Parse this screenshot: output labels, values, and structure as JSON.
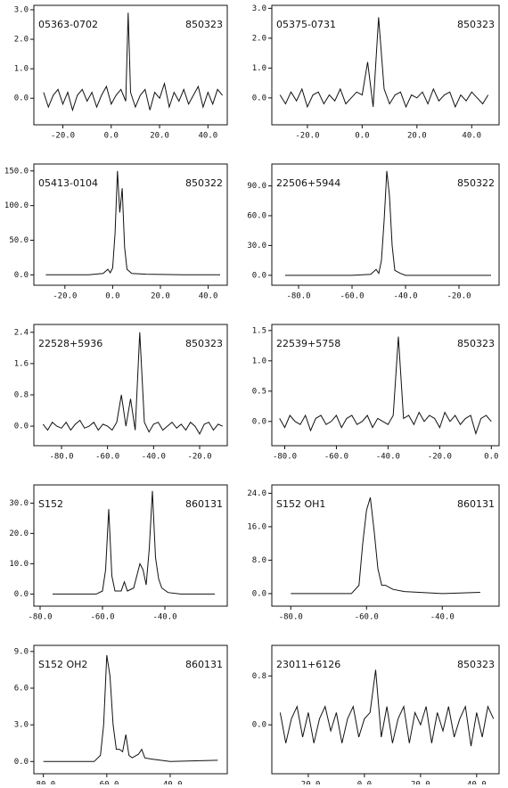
{
  "chart_data": [
    {
      "type": "line",
      "title": "05363-0702",
      "subtitle": "850323",
      "color": "#111111",
      "xlim": [
        -32,
        48
      ],
      "ylim": [
        -0.9,
        3.15
      ],
      "xticks": [
        {
          "value": -20,
          "label": "-20.0"
        },
        {
          "value": 0,
          "label": "0.0"
        },
        {
          "value": 20,
          "label": "20.0"
        },
        {
          "value": 40,
          "label": "40.0"
        }
      ],
      "yticks": [
        {
          "value": 0,
          "label": "0.0"
        },
        {
          "value": 1,
          "label": "1.0"
        },
        {
          "value": 2,
          "label": "2.0"
        },
        {
          "value": 3,
          "label": "3.0"
        }
      ],
      "x": [
        -28,
        -26,
        -24,
        -22,
        -20,
        -18,
        -16,
        -14,
        -12,
        -10,
        -8,
        -6,
        -4,
        -2,
        0,
        2,
        4,
        6,
        7,
        8,
        10,
        12,
        14,
        16,
        18,
        20,
        22,
        24,
        26,
        28,
        30,
        32,
        34,
        36,
        38,
        40,
        42,
        44,
        46
      ],
      "values": [
        0.2,
        -0.3,
        0.1,
        0.3,
        -0.2,
        0.2,
        -0.4,
        0.1,
        0.3,
        -0.1,
        0.2,
        -0.3,
        0.1,
        0.4,
        -0.2,
        0.1,
        0.3,
        -0.1,
        2.9,
        0.2,
        -0.3,
        0.1,
        0.3,
        -0.4,
        0.2,
        0.0,
        0.5,
        -0.3,
        0.2,
        -0.1,
        0.3,
        -0.2,
        0.1,
        0.4,
        -0.3,
        0.2,
        -0.2,
        0.3,
        0.1
      ]
    },
    {
      "type": "line",
      "title": "05375-0731",
      "subtitle": "850323",
      "color": "#111111",
      "xlim": [
        -33,
        50
      ],
      "ylim": [
        -0.9,
        3.1
      ],
      "xticks": [
        {
          "value": -20,
          "label": "-20.0"
        },
        {
          "value": 0,
          "label": "0.0"
        },
        {
          "value": 20,
          "label": "20.0"
        },
        {
          "value": 40,
          "label": "40.0"
        }
      ],
      "yticks": [
        {
          "value": 0,
          "label": "0.0"
        },
        {
          "value": 1,
          "label": "1.0"
        },
        {
          "value": 2,
          "label": "2.0"
        },
        {
          "value": 3,
          "label": "3.0"
        }
      ],
      "x": [
        -30,
        -28,
        -26,
        -24,
        -22,
        -20,
        -18,
        -16,
        -14,
        -12,
        -10,
        -8,
        -6,
        -4,
        -2,
        0,
        2,
        4,
        6,
        8,
        10,
        12,
        14,
        16,
        18,
        20,
        22,
        24,
        26,
        28,
        30,
        32,
        34,
        36,
        38,
        40,
        42,
        44,
        46
      ],
      "values": [
        0.1,
        -0.2,
        0.2,
        -0.1,
        0.3,
        -0.3,
        0.1,
        0.2,
        -0.2,
        0.1,
        -0.1,
        0.3,
        -0.2,
        0.0,
        0.2,
        0.1,
        1.2,
        -0.3,
        2.7,
        0.3,
        -0.2,
        0.1,
        0.2,
        -0.3,
        0.1,
        0.0,
        0.2,
        -0.2,
        0.3,
        -0.1,
        0.1,
        0.2,
        -0.3,
        0.1,
        -0.1,
        0.2,
        0.0,
        -0.2,
        0.1
      ]
    },
    {
      "type": "line",
      "title": "05413-0104",
      "subtitle": "850322",
      "color": "#111111",
      "xlim": [
        -33,
        48
      ],
      "ylim": [
        -15,
        160
      ],
      "xticks": [
        {
          "value": -20,
          "label": "-20.0"
        },
        {
          "value": 0,
          "label": "0.0"
        },
        {
          "value": 20,
          "label": "20.0"
        },
        {
          "value": 40,
          "label": "40.0"
        }
      ],
      "yticks": [
        {
          "value": 0,
          "label": "0.0"
        },
        {
          "value": 50,
          "label": "50.0"
        },
        {
          "value": 100,
          "label": "100.0"
        },
        {
          "value": 150,
          "label": "150.0"
        }
      ],
      "x": [
        -28,
        -10,
        -4,
        -2,
        -1,
        0,
        1,
        2,
        3,
        4,
        5,
        6,
        8,
        14,
        30,
        45
      ],
      "values": [
        0,
        0,
        2,
        8,
        3,
        10,
        60,
        150,
        90,
        125,
        40,
        8,
        2,
        1,
        0,
        0
      ]
    },
    {
      "type": "line",
      "title": "22506+5944",
      "subtitle": "850322",
      "color": "#111111",
      "xlim": [
        -90,
        -5
      ],
      "ylim": [
        -10,
        112
      ],
      "xticks": [
        {
          "value": -80,
          "label": "-80.0"
        },
        {
          "value": -60,
          "label": "-60.0"
        },
        {
          "value": -40,
          "label": "-40.0"
        },
        {
          "value": -20,
          "label": "-20.0"
        }
      ],
      "yticks": [
        {
          "value": 0,
          "label": "0.0"
        },
        {
          "value": 30,
          "label": "30.0"
        },
        {
          "value": 60,
          "label": "60.0"
        },
        {
          "value": 90,
          "label": "90.0"
        }
      ],
      "x": [
        -85,
        -60,
        -53,
        -51,
        -50,
        -49,
        -48,
        -47,
        -46,
        -45,
        -44,
        -42,
        -40,
        -30,
        -8
      ],
      "values": [
        0,
        0,
        1,
        6,
        2,
        15,
        55,
        105,
        80,
        30,
        5,
        2,
        0,
        0,
        0
      ]
    },
    {
      "type": "line",
      "title": "22528+5936",
      "subtitle": "850323",
      "color": "#111111",
      "xlim": [
        -92,
        -8
      ],
      "ylim": [
        -0.5,
        2.6
      ],
      "xticks": [
        {
          "value": -80,
          "label": "-80.0"
        },
        {
          "value": -60,
          "label": "-60.0"
        },
        {
          "value": -40,
          "label": "-40.0"
        },
        {
          "value": -20,
          "label": "-20.0"
        }
      ],
      "yticks": [
        {
          "value": 0,
          "label": "0.0"
        },
        {
          "value": 0.8,
          "label": "0.8"
        },
        {
          "value": 1.6,
          "label": "1.6"
        },
        {
          "value": 2.4,
          "label": "2.4"
        }
      ],
      "x": [
        -88,
        -86,
        -84,
        -82,
        -80,
        -78,
        -76,
        -74,
        -72,
        -70,
        -68,
        -66,
        -64,
        -62,
        -60,
        -58,
        -56,
        -54,
        -52,
        -50,
        -48,
        -46,
        -44,
        -42,
        -40,
        -38,
        -36,
        -34,
        -32,
        -30,
        -28,
        -26,
        -24,
        -22,
        -20,
        -18,
        -16,
        -14,
        -12,
        -10
      ],
      "values": [
        0.05,
        -0.1,
        0.1,
        0.0,
        -0.05,
        0.1,
        -0.1,
        0.05,
        0.15,
        -0.05,
        0.0,
        0.1,
        -0.1,
        0.05,
        0.0,
        -0.1,
        0.1,
        0.8,
        0.0,
        0.7,
        -0.1,
        2.4,
        0.1,
        -0.15,
        0.05,
        0.1,
        -0.1,
        0.0,
        0.1,
        -0.05,
        0.05,
        -0.1,
        0.1,
        0.0,
        -0.2,
        0.05,
        0.1,
        -0.1,
        0.05,
        0.0
      ]
    },
    {
      "type": "line",
      "title": "22539+5758",
      "subtitle": "850323",
      "color": "#111111",
      "xlim": [
        -85,
        3
      ],
      "ylim": [
        -0.4,
        1.6
      ],
      "xticks": [
        {
          "value": -80,
          "label": "-80.0"
        },
        {
          "value": -60,
          "label": "-60.0"
        },
        {
          "value": -40,
          "label": "-40.0"
        },
        {
          "value": -20,
          "label": "-20.0"
        },
        {
          "value": 0,
          "label": "0.0"
        }
      ],
      "yticks": [
        {
          "value": 0,
          "label": "0.0"
        },
        {
          "value": 0.5,
          "label": "0.5"
        },
        {
          "value": 1,
          "label": "1.0"
        },
        {
          "value": 1.5,
          "label": "1.5"
        }
      ],
      "x": [
        -82,
        -80,
        -78,
        -76,
        -74,
        -72,
        -70,
        -68,
        -66,
        -64,
        -62,
        -60,
        -58,
        -56,
        -54,
        -52,
        -50,
        -48,
        -46,
        -44,
        -42,
        -40,
        -38,
        -36,
        -34,
        -32,
        -30,
        -28,
        -26,
        -24,
        -22,
        -20,
        -18,
        -16,
        -14,
        -12,
        -10,
        -8,
        -6,
        -4,
        -2,
        0
      ],
      "values": [
        0.05,
        -0.1,
        0.1,
        0.0,
        -0.05,
        0.1,
        -0.15,
        0.05,
        0.1,
        -0.05,
        0.0,
        0.1,
        -0.1,
        0.05,
        0.1,
        -0.05,
        0.0,
        0.1,
        -0.1,
        0.05,
        0.0,
        -0.05,
        0.1,
        1.4,
        0.05,
        0.1,
        -0.05,
        0.15,
        0.0,
        0.1,
        0.05,
        -0.1,
        0.15,
        0.0,
        0.1,
        -0.05,
        0.05,
        0.1,
        -0.2,
        0.05,
        0.1,
        0.0
      ]
    },
    {
      "type": "line",
      "title": "S152",
      "subtitle": "860131",
      "color": "#111111",
      "xlim": [
        -82,
        -20
      ],
      "ylim": [
        -4,
        36
      ],
      "xticks": [
        {
          "value": -80,
          "label": "-80.0"
        },
        {
          "value": -60,
          "label": "-60.0"
        },
        {
          "value": -40,
          "label": "-40.0"
        }
      ],
      "yticks": [
        {
          "value": 0,
          "label": "0.0"
        },
        {
          "value": 10,
          "label": "10.0"
        },
        {
          "value": 20,
          "label": "20.0"
        },
        {
          "value": 30,
          "label": "30.0"
        }
      ],
      "x": [
        -76,
        -62,
        -60,
        -59,
        -58,
        -57,
        -56,
        -54,
        -53,
        -52,
        -50,
        -48,
        -47,
        -46,
        -45,
        -44,
        -43,
        -42,
        -41,
        -39,
        -35,
        -24
      ],
      "values": [
        0,
        0,
        1,
        8,
        28,
        6,
        1,
        1,
        4,
        1,
        2,
        10,
        8,
        3,
        15,
        34,
        12,
        5,
        2,
        0.5,
        0,
        0
      ]
    },
    {
      "type": "line",
      "title": "S152  OH1",
      "subtitle": "860131",
      "color": "#111111",
      "xlim": [
        -85,
        -25
      ],
      "ylim": [
        -3,
        26
      ],
      "xticks": [
        {
          "value": -80,
          "label": "-80.0"
        },
        {
          "value": -60,
          "label": "-60.0"
        },
        {
          "value": -40,
          "label": "-40.0"
        }
      ],
      "yticks": [
        {
          "value": 0,
          "label": "0.0"
        },
        {
          "value": 8,
          "label": "8.0"
        },
        {
          "value": 16,
          "label": "16.0"
        },
        {
          "value": 24,
          "label": "24.0"
        }
      ],
      "x": [
        -80,
        -64,
        -62,
        -61,
        -60,
        -59,
        -58,
        -57,
        -56,
        -55,
        -53,
        -50,
        -40,
        -30
      ],
      "values": [
        0,
        0,
        2,
        12,
        20,
        23,
        15,
        6,
        2,
        2,
        1,
        0.5,
        0,
        0.3
      ]
    },
    {
      "type": "line",
      "title": "S152  OH2",
      "subtitle": "860131",
      "color": "#111111",
      "xlim": [
        -83,
        -22
      ],
      "ylim": [
        -1,
        9.5
      ],
      "xticks": [
        {
          "value": -80,
          "label": "-80.0"
        },
        {
          "value": -60,
          "label": "-60.0"
        },
        {
          "value": -40,
          "label": "-40.0"
        }
      ],
      "yticks": [
        {
          "value": 0,
          "label": "0.0"
        },
        {
          "value": 3,
          "label": "3.0"
        },
        {
          "value": 6,
          "label": "6.0"
        },
        {
          "value": 9,
          "label": "9.0"
        }
      ],
      "x": [
        -80,
        -64,
        -62,
        -61,
        -60,
        -59,
        -58,
        -57,
        -56,
        -55,
        -54,
        -53,
        -52,
        -50,
        -49,
        -48,
        -46,
        -40,
        -25
      ],
      "values": [
        0,
        0,
        0.5,
        3,
        8.7,
        7,
        3,
        1,
        1,
        0.8,
        2.2,
        0.5,
        0.3,
        0.6,
        1.0,
        0.3,
        0.2,
        0,
        0.1
      ]
    },
    {
      "type": "line",
      "title": "23011+6126",
      "subtitle": "850323",
      "color": "#111111",
      "xlim": [
        -33,
        48
      ],
      "ylim": [
        -0.8,
        1.3
      ],
      "xticks": [
        {
          "value": -20,
          "label": "-20.0"
        },
        {
          "value": 0,
          "label": "0.0"
        },
        {
          "value": 20,
          "label": "20.0"
        },
        {
          "value": 40,
          "label": "40.0"
        }
      ],
      "yticks": [
        {
          "value": 0,
          "label": "0.0"
        },
        {
          "value": 0.8,
          "label": "0.8"
        }
      ],
      "x": [
        -30,
        -28,
        -26,
        -24,
        -22,
        -20,
        -18,
        -16,
        -14,
        -12,
        -10,
        -8,
        -6,
        -4,
        -2,
        0,
        2,
        4,
        6,
        8,
        10,
        12,
        14,
        16,
        18,
        20,
        22,
        24,
        26,
        28,
        30,
        32,
        34,
        36,
        38,
        40,
        42,
        44,
        46
      ],
      "values": [
        0.2,
        -0.3,
        0.1,
        0.3,
        -0.2,
        0.2,
        -0.3,
        0.1,
        0.3,
        -0.1,
        0.2,
        -0.3,
        0.1,
        0.3,
        -0.2,
        0.1,
        0.2,
        0.9,
        -0.2,
        0.3,
        -0.3,
        0.1,
        0.3,
        -0.3,
        0.2,
        0.0,
        0.3,
        -0.3,
        0.2,
        -0.1,
        0.3,
        -0.2,
        0.1,
        0.3,
        -0.35,
        0.2,
        -0.2,
        0.3,
        0.1
      ]
    }
  ]
}
